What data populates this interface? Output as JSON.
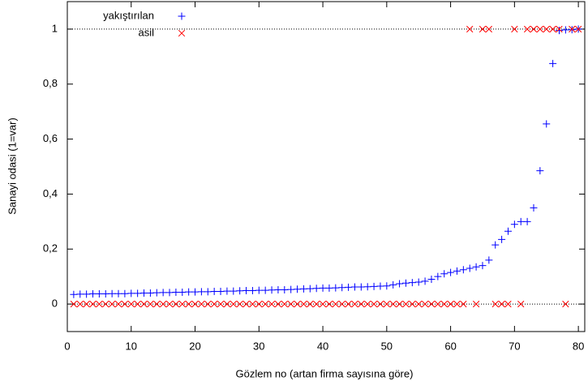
{
  "chart_data": {
    "type": "scatter",
    "x_label": "Gözlem no (artan firma sayısına göre)",
    "y_label": "Sanayi odasi (1=var)",
    "x": [
      1,
      2,
      3,
      4,
      5,
      6,
      7,
      8,
      9,
      10,
      11,
      12,
      13,
      14,
      15,
      16,
      17,
      18,
      19,
      20,
      21,
      22,
      23,
      24,
      25,
      26,
      27,
      28,
      29,
      30,
      31,
      32,
      33,
      34,
      35,
      36,
      37,
      38,
      39,
      40,
      41,
      42,
      43,
      44,
      45,
      46,
      47,
      48,
      49,
      50,
      51,
      52,
      53,
      54,
      55,
      56,
      57,
      58,
      59,
      60,
      61,
      62,
      63,
      64,
      65,
      66,
      67,
      68,
      69,
      70,
      71,
      72,
      73,
      74,
      75,
      76,
      77,
      78,
      79,
      80
    ],
    "series": [
      {
        "name": "yakıştırılan",
        "color": "#0000ff",
        "marker": "plus",
        "values": [
          0.035,
          0.036,
          0.036,
          0.037,
          0.037,
          0.037,
          0.038,
          0.038,
          0.038,
          0.039,
          0.039,
          0.04,
          0.04,
          0.041,
          0.042,
          0.042,
          0.043,
          0.043,
          0.044,
          0.044,
          0.045,
          0.045,
          0.046,
          0.046,
          0.047,
          0.047,
          0.048,
          0.049,
          0.049,
          0.05,
          0.05,
          0.051,
          0.052,
          0.052,
          0.053,
          0.054,
          0.055,
          0.056,
          0.057,
          0.058,
          0.058,
          0.059,
          0.06,
          0.061,
          0.062,
          0.062,
          0.063,
          0.064,
          0.065,
          0.066,
          0.07,
          0.074,
          0.076,
          0.078,
          0.08,
          0.083,
          0.09,
          0.1,
          0.11,
          0.115,
          0.12,
          0.125,
          0.13,
          0.135,
          0.14,
          0.16,
          0.215,
          0.235,
          0.265,
          0.29,
          0.3,
          0.3,
          0.35,
          0.485,
          0.655,
          0.875,
          0.995,
          0.997,
          0.998,
          1.0
        ]
      },
      {
        "name": "asil",
        "color": "#ff0000",
        "marker": "cross",
        "values": [
          0,
          0,
          0,
          0,
          0,
          0,
          0,
          0,
          0,
          0,
          0,
          0,
          0,
          0,
          0,
          0,
          0,
          0,
          0,
          0,
          0,
          0,
          0,
          0,
          0,
          0,
          0,
          0,
          0,
          0,
          0,
          0,
          0,
          0,
          0,
          0,
          0,
          0,
          0,
          0,
          0,
          0,
          0,
          0,
          0,
          0,
          0,
          0,
          0,
          0,
          0,
          0,
          0,
          0,
          0,
          0,
          0,
          0,
          0,
          0,
          0,
          0,
          1,
          0,
          1,
          1,
          0,
          0,
          0,
          1,
          0,
          1,
          1,
          1,
          1,
          1,
          1,
          0,
          1,
          1
        ]
      }
    ],
    "xlim": [
      0,
      81
    ],
    "xticks": [
      0,
      10,
      20,
      30,
      40,
      50,
      60,
      70,
      80
    ],
    "ylim": [
      -0.1,
      1.1
    ],
    "yticks": [
      0,
      {
        "value": 0.2,
        "label": "0,2"
      },
      {
        "value": 0.4,
        "label": "0,4"
      },
      {
        "value": 0.6,
        "label": "0,6"
      },
      {
        "value": 0.8,
        "label": "0,8"
      },
      1
    ],
    "hlines": [
      0,
      1
    ],
    "legend": "top-left"
  }
}
